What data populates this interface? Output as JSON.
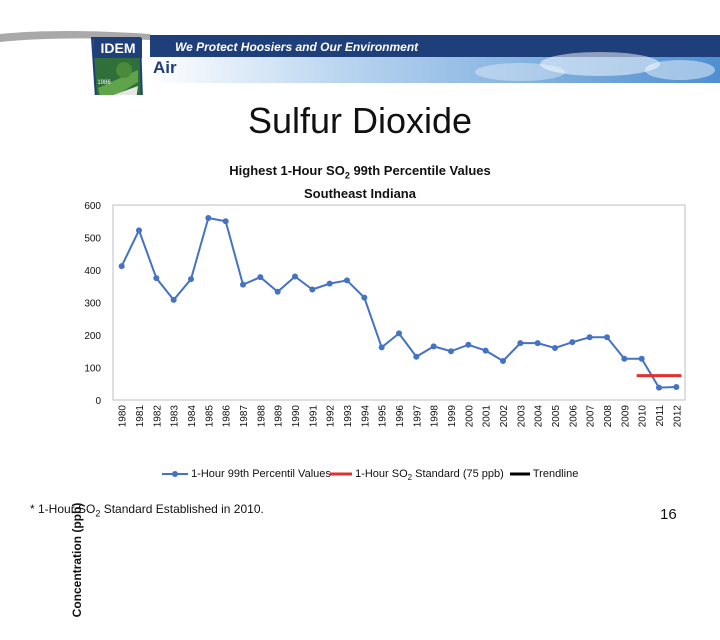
{
  "banner": {
    "logo_text": "IDEM",
    "slogan": "We Protect Hoosiers and Our Environment",
    "section": "Air",
    "seal_year": "1986"
  },
  "slide": {
    "title": "Sulfur Dioxide",
    "page_number": "16",
    "footnote_pre": "* 1-Hour SO",
    "footnote_sub": "2",
    "footnote_post": " Standard  Established in 2010."
  },
  "colors": {
    "series_line": "#4472C4",
    "standard_line": "#E03030",
    "trendline": "#000000",
    "banner_blue": "#1f3f7a",
    "sky_blue": "#6fa3d8"
  },
  "chart_data": {
    "type": "line",
    "title_line1_pre": "Highest 1-Hour SO",
    "title_line1_sub": "2",
    "title_line1_post": " 99th Percentile Values",
    "title_line2": "Southeast Indiana",
    "ylabel": "Concentration (ppb)",
    "xlabel": "",
    "ylim": [
      0,
      600
    ],
    "yticks": [
      0,
      100,
      200,
      300,
      400,
      500,
      600
    ],
    "grid": false,
    "legend_position": "bottom",
    "categories": [
      "1980",
      "1981",
      "1982",
      "1983",
      "1984",
      "1985",
      "1986",
      "1987",
      "1988",
      "1989",
      "1990",
      "1991",
      "1992",
      "1993",
      "1994",
      "1995",
      "1996",
      "1997",
      "1998",
      "1999",
      "2000",
      "2001",
      "2002",
      "2003",
      "2004",
      "2005",
      "2006",
      "2007",
      "2008",
      "2009",
      "2010",
      "2011",
      "2012"
    ],
    "series": [
      {
        "name": "1-Hour 99th Percentil Values",
        "values": [
          412,
          522,
          375,
          308,
          372,
          560,
          550,
          355,
          378,
          333,
          380,
          340,
          358,
          368,
          315,
          162,
          205,
          133,
          165,
          150,
          170,
          152,
          120,
          175,
          175,
          160,
          178,
          193,
          193,
          127,
          127,
          38,
          40
        ]
      },
      {
        "name_pre": "1-Hour SO",
        "name_sub": "2",
        "name_post": " Standard (75 ppb)",
        "years": [
          "2010",
          "2012"
        ],
        "value": 75
      },
      {
        "name": "Trendline"
      }
    ]
  }
}
